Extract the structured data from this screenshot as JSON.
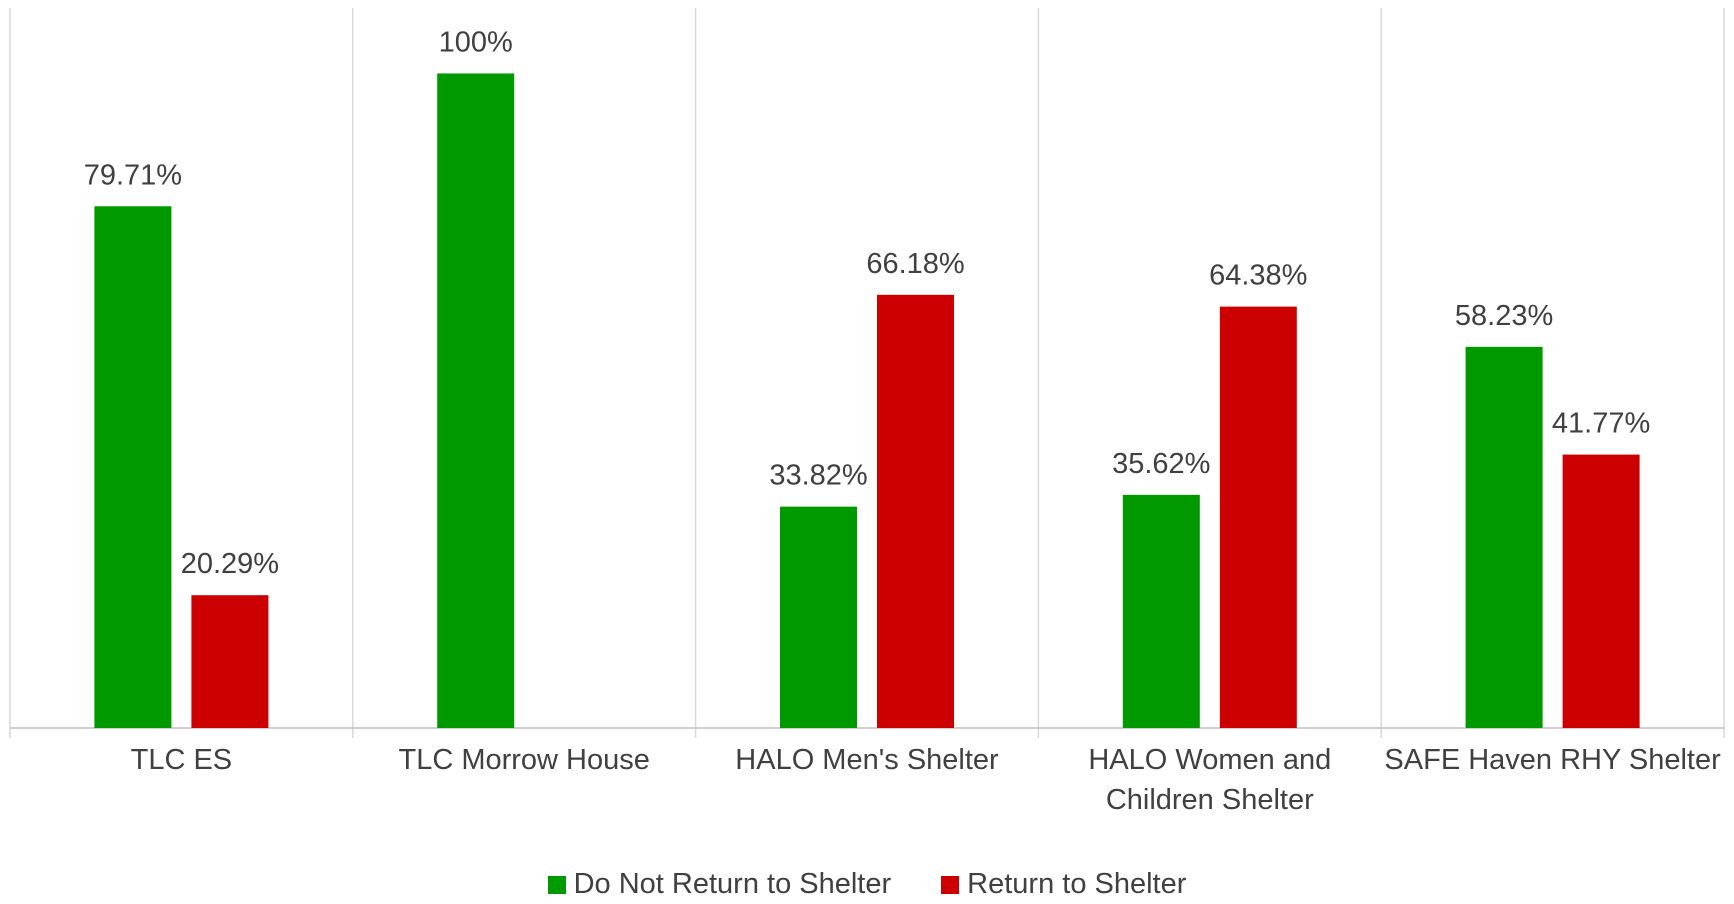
{
  "chart_data": {
    "type": "bar",
    "categories": [
      "TLC ES",
      "TLC Morrow House",
      "HALO Men's Shelter",
      "HALO Women and Children Shelter",
      "SAFE Haven RHY Shelter"
    ],
    "series": [
      {
        "name": "Do Not Return to Shelter",
        "color": "#009900",
        "values": [
          79.71,
          100,
          33.82,
          35.62,
          58.23
        ],
        "labels": [
          "79.71%",
          "100%",
          "33.82%",
          "35.62%",
          "58.23%"
        ]
      },
      {
        "name": "Return to Shelter",
        "color": "#CC0000",
        "values": [
          20.29,
          null,
          66.18,
          64.38,
          41.77
        ],
        "labels": [
          "20.29%",
          "",
          "66.18%",
          "64.38%",
          "41.77%"
        ]
      }
    ],
    "ylim": [
      0,
      110
    ],
    "grid": false,
    "legend_position": "bottom"
  }
}
